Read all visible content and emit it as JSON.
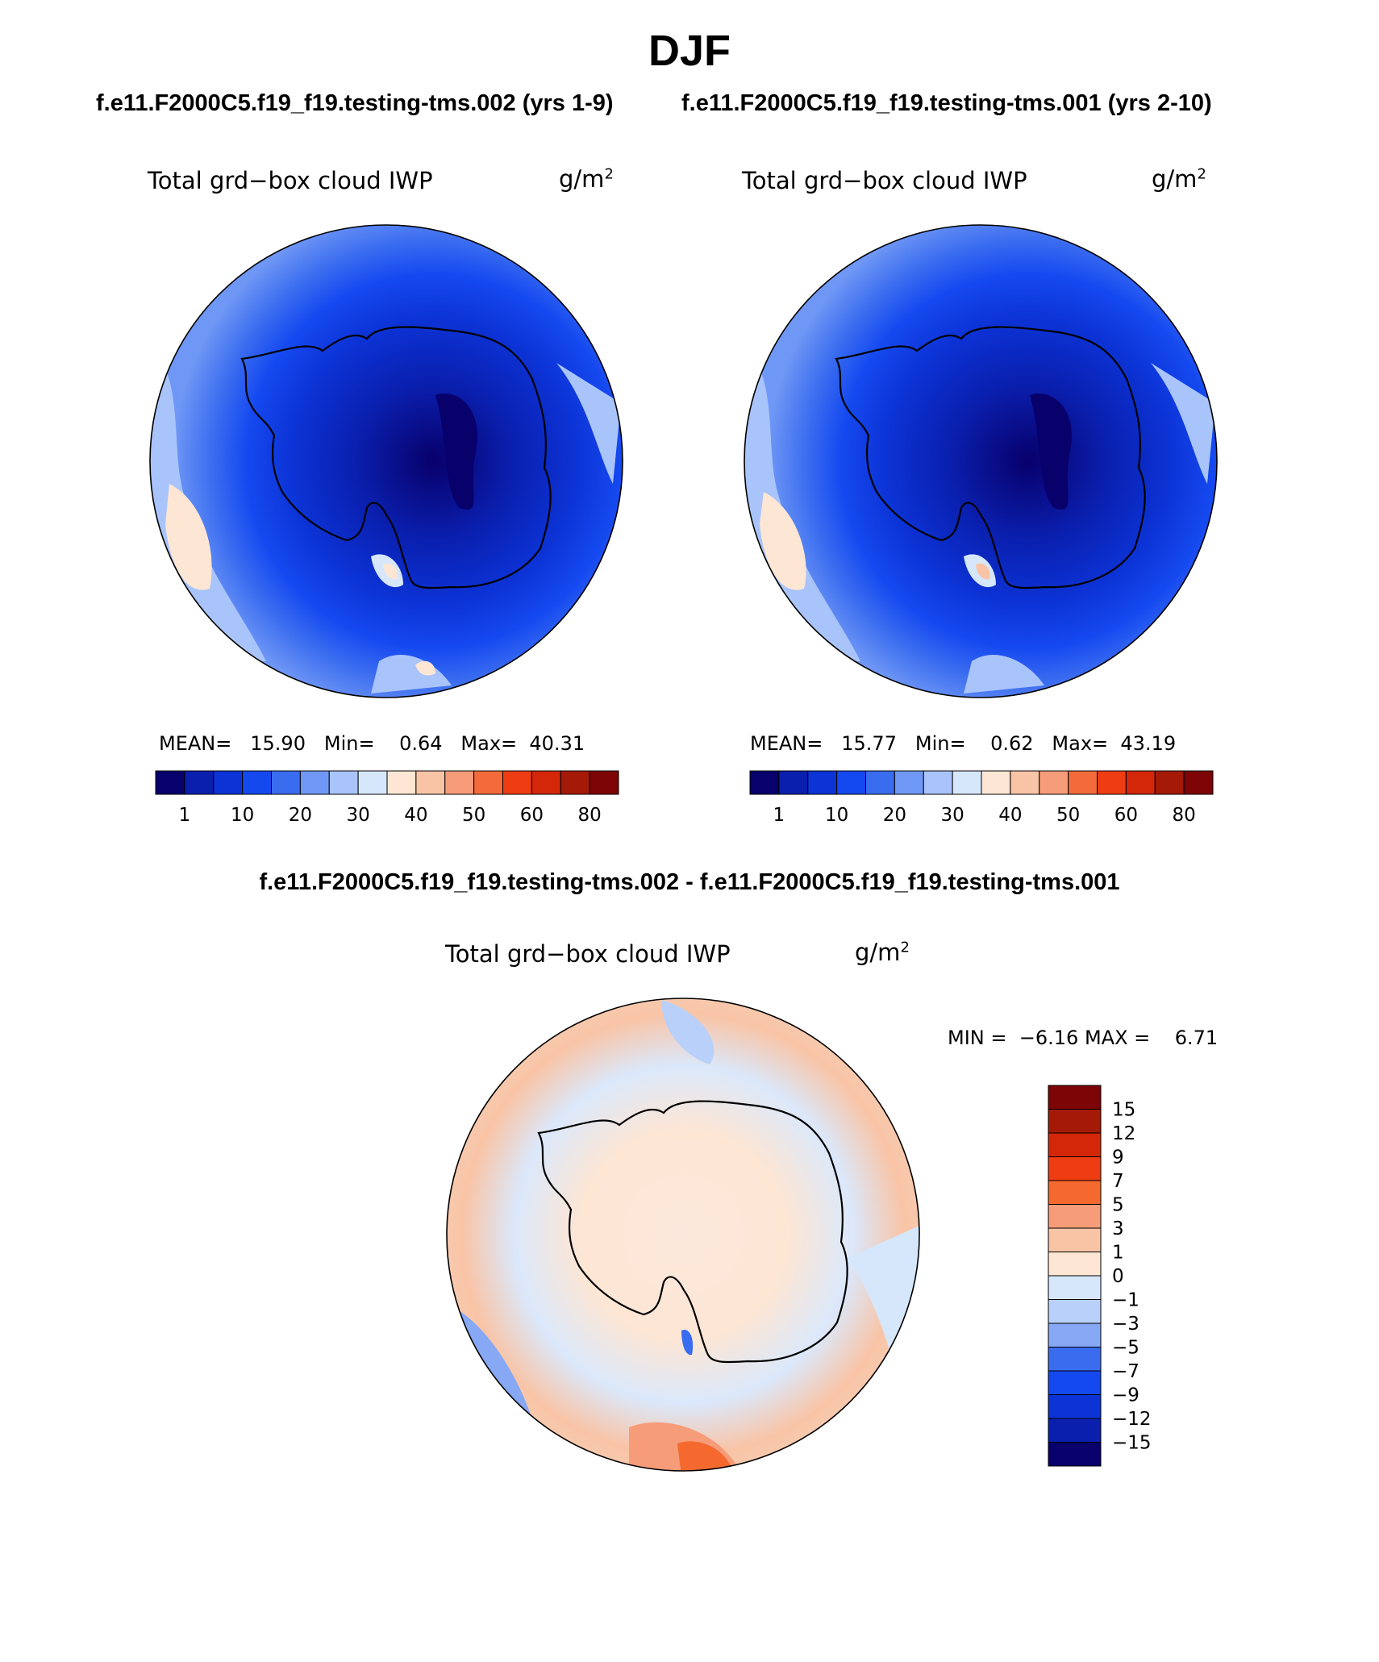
{
  "season": "DJF",
  "panels": [
    {
      "case": "f.e11.F2000C5.f19_f19.testing-tms.002 (yrs 1-9)",
      "variable": "Total grd−box cloud IWP",
      "units": "g/m",
      "units_exp": "2",
      "mean_label": "MEAN=",
      "mean": "15.90",
      "min_label": "Min=",
      "min": "0.64",
      "max_label": "Max=",
      "max": "40.31"
    },
    {
      "case": "f.e11.F2000C5.f19_f19.testing-tms.001 (yrs 2-10)",
      "variable": "Total grd−box cloud IWP",
      "units": "g/m",
      "units_exp": "2",
      "mean_label": "MEAN=",
      "mean": "15.77",
      "min_label": "Min=",
      "min": "0.62",
      "max_label": "Max=",
      "max": "43.19"
    }
  ],
  "field_colorbar": {
    "labels": [
      "1",
      "10",
      "20",
      "30",
      "40",
      "50",
      "60",
      "80"
    ],
    "colors": [
      "#08006b",
      "#0a1fae",
      "#0c33d6",
      "#1549f0",
      "#3a6cf0",
      "#6f97f5",
      "#a9c4fa",
      "#d6e6fb",
      "#fde6d4",
      "#f9c4a6",
      "#f69c79",
      "#f36b3b",
      "#ee3d12",
      "#d4270a",
      "#a51a06",
      "#7d0505"
    ]
  },
  "difference": {
    "title": "f.e11.F2000C5.f19_f19.testing-tms.002 - f.e11.F2000C5.f19_f19.testing-tms.001",
    "variable": "Total grd−box cloud IWP",
    "units": "g/m",
    "units_exp": "2",
    "min_label": "MIN =",
    "min": "−6.16",
    "max_label": "MAX =",
    "max": "6.71",
    "colorbar_labels": [
      "15",
      "12",
      "9",
      "7",
      "5",
      "3",
      "1",
      "0",
      "−1",
      "−3",
      "−5",
      "−7",
      "−9",
      "−12",
      "−15"
    ],
    "colorbar_colors": [
      "#7d0505",
      "#a51a06",
      "#d4270a",
      "#ee3d12",
      "#f5692f",
      "#f69c79",
      "#f9c4a6",
      "#fde6d4",
      "#d6e6fb",
      "#b8d0fa",
      "#86a8f5",
      "#3a6cf0",
      "#1549f0",
      "#0c33d6",
      "#0a1fae",
      "#08006b"
    ]
  }
}
